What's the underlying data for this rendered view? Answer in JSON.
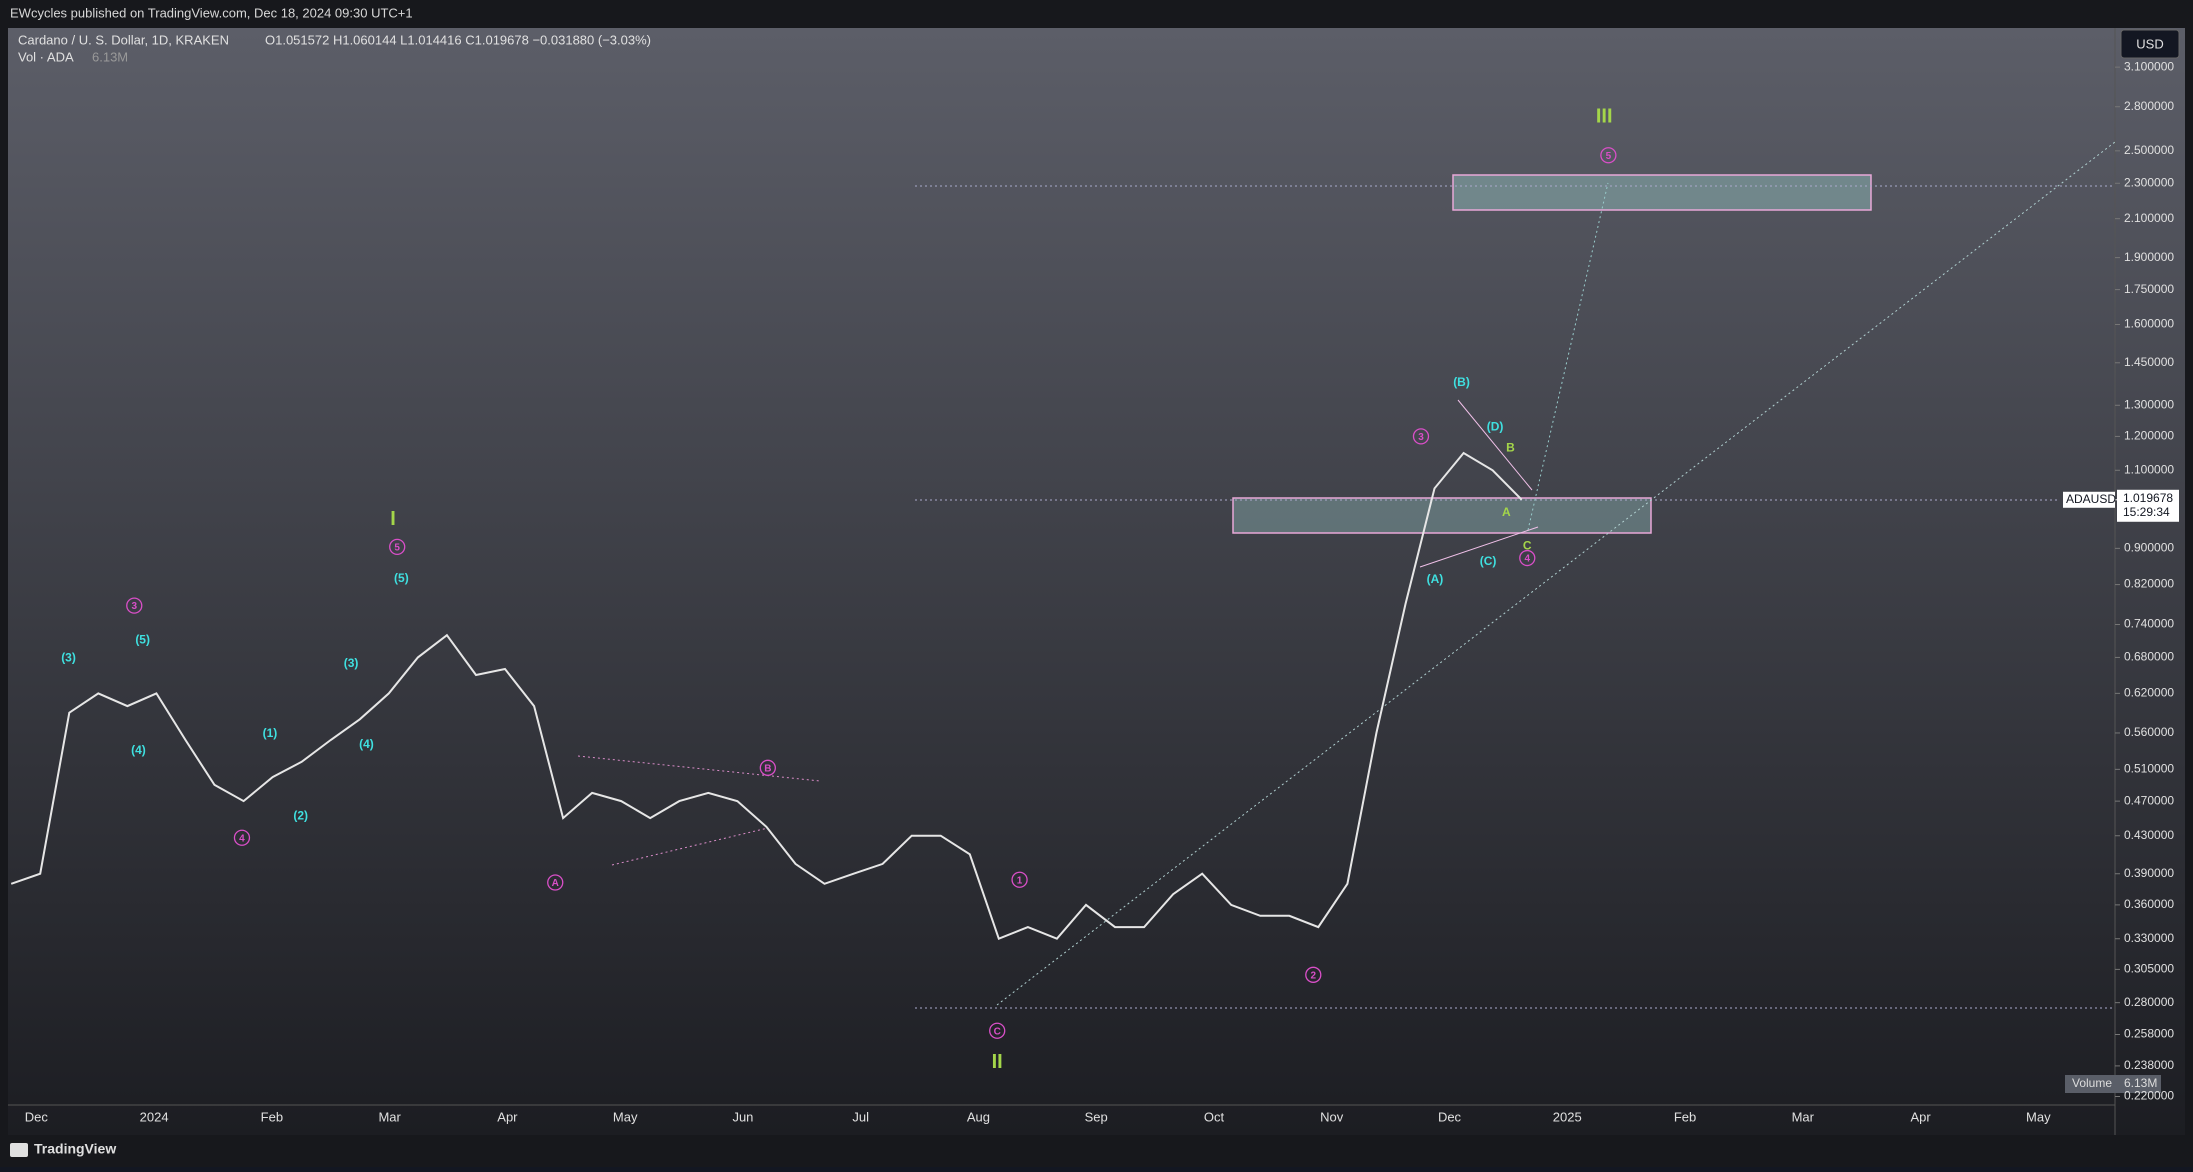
{
  "header": {
    "publisher": "EWcycles published on TradingView.com, Dec 18, 2024 09:30 UTC+1",
    "brand": "TradingView"
  },
  "chart_data": {
    "type": "line",
    "symbol": "Cardano / U. S. Dollar, 1D, KRAKEN",
    "ohlc": "O1.051572  H1.060144  L1.014416  C1.019678  −0.031880 (−3.03%)",
    "volume_legend": "Vol · ADA",
    "volume_value": "6.13M",
    "currency": "USD",
    "ticker": "ADAUSD",
    "last_price": {
      "value": 1.019678,
      "label": "1.019678"
    },
    "countdown": "15:29:34",
    "volume_label": "Volume",
    "log_scale": true,
    "color": "#e6e6e6",
    "ylim": [
      0.22,
      3.1
    ],
    "yticks": [
      {
        "value": 3.1,
        "label": "3.100000"
      },
      {
        "value": 2.8,
        "label": "2.800000"
      },
      {
        "value": 2.5,
        "label": "2.500000"
      },
      {
        "value": 2.3,
        "label": "2.300000"
      },
      {
        "value": 2.1,
        "label": "2.100000"
      },
      {
        "value": 1.9,
        "label": "1.900000"
      },
      {
        "value": 1.75,
        "label": "1.750000"
      },
      {
        "value": 1.6,
        "label": "1.600000"
      },
      {
        "value": 1.45,
        "label": "1.450000"
      },
      {
        "value": 1.3,
        "label": "1.300000"
      },
      {
        "value": 1.2,
        "label": "1.200000"
      },
      {
        "value": 1.1,
        "label": "1.100000"
      },
      {
        "value": 0.9,
        "label": "0.900000"
      },
      {
        "value": 0.82,
        "label": "0.820000"
      },
      {
        "value": 0.74,
        "label": "0.740000"
      },
      {
        "value": 0.68,
        "label": "0.680000"
      },
      {
        "value": 0.62,
        "label": "0.620000"
      },
      {
        "value": 0.56,
        "label": "0.560000"
      },
      {
        "value": 0.51,
        "label": "0.510000"
      },
      {
        "value": 0.47,
        "label": "0.470000"
      },
      {
        "value": 0.43,
        "label": "0.430000"
      },
      {
        "value": 0.39,
        "label": "0.390000"
      },
      {
        "value": 0.36,
        "label": "0.360000"
      },
      {
        "value": 0.33,
        "label": "0.330000"
      },
      {
        "value": 0.305,
        "label": "0.305000"
      },
      {
        "value": 0.28,
        "label": "0.280000"
      },
      {
        "value": 0.258,
        "label": "0.258000"
      },
      {
        "value": 0.238,
        "label": "0.238000"
      },
      {
        "value": 0.22,
        "label": "0.220000"
      }
    ],
    "xticks": [
      "Dec",
      "2024",
      "Feb",
      "Mar",
      "Apr",
      "May",
      "Jun",
      "Jul",
      "Aug",
      "Sep",
      "Oct",
      "Nov",
      "Dec",
      "2025",
      "Feb",
      "Mar",
      "Apr",
      "May"
    ],
    "values": [
      0.38,
      0.39,
      0.59,
      0.62,
      0.6,
      0.62,
      0.55,
      0.49,
      0.47,
      0.5,
      0.52,
      0.55,
      0.58,
      0.62,
      0.68,
      0.72,
      0.65,
      0.66,
      0.6,
      0.45,
      0.48,
      0.47,
      0.45,
      0.47,
      0.48,
      0.47,
      0.44,
      0.4,
      0.38,
      0.39,
      0.4,
      0.43,
      0.43,
      0.41,
      0.33,
      0.34,
      0.33,
      0.36,
      0.34,
      0.34,
      0.37,
      0.39,
      0.36,
      0.35,
      0.35,
      0.34,
      0.38,
      0.56,
      0.78,
      1.05,
      1.15,
      1.1,
      1.02
    ],
    "annotations": [
      {
        "text": "I",
        "color": "#a4d64a"
      },
      {
        "text": "II",
        "color": "#a4d64a"
      },
      {
        "text": "III",
        "color": "#a4d64a"
      },
      {
        "text": "3",
        "color": "#d94fc8"
      },
      {
        "text": "4",
        "color": "#d94fc8"
      },
      {
        "text": "5",
        "color": "#d94fc8"
      },
      {
        "text": "A",
        "color": "#d94fc8"
      },
      {
        "text": "B",
        "color": "#d94fc8"
      },
      {
        "text": "C",
        "color": "#d94fc8"
      },
      {
        "text": "1",
        "color": "#d94fc8"
      },
      {
        "text": "2",
        "color": "#d94fc8"
      },
      {
        "text": "3",
        "color": "#d94fc8"
      },
      {
        "text": "4",
        "color": "#d94fc8"
      },
      {
        "text": "5",
        "color": "#d94fc8"
      },
      {
        "text": "(3)",
        "color": "#3fe0e0"
      },
      {
        "text": "(5)",
        "color": "#3fe0e0"
      },
      {
        "text": "(4)",
        "color": "#3fe0e0"
      },
      {
        "text": "(1)",
        "color": "#3fe0e0"
      },
      {
        "text": "(2)",
        "color": "#3fe0e0"
      },
      {
        "text": "(3)",
        "color": "#3fe0e0"
      },
      {
        "text": "(4)",
        "color": "#3fe0e0"
      },
      {
        "text": "(5)",
        "color": "#3fe0e0"
      },
      {
        "text": "(A)",
        "color": "#3fe0e0"
      },
      {
        "text": "(B)",
        "color": "#3fe0e0"
      },
      {
        "text": "(C)",
        "color": "#3fe0e0"
      },
      {
        "text": "(D)",
        "color": "#3fe0e0"
      },
      {
        "text": "A",
        "color": "#a4d64a"
      },
      {
        "text": "B",
        "color": "#a4d64a"
      },
      {
        "text": "C",
        "color": "#a4d64a"
      }
    ]
  }
}
